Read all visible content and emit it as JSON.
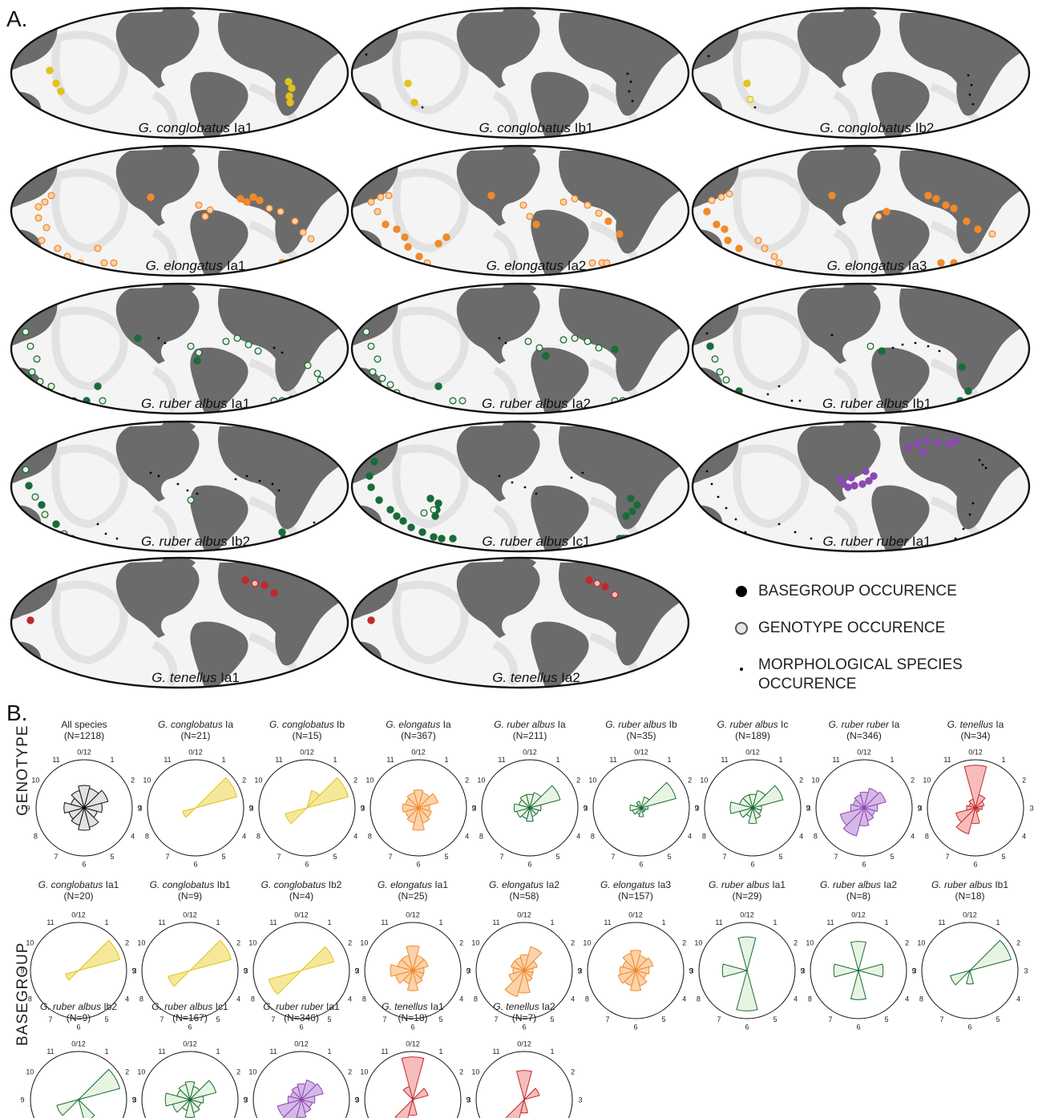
{
  "panels": {
    "a_label": "A.",
    "b_label": "B."
  },
  "side_labels": {
    "genotype": "GENOTYPE",
    "basegroup": "BASEGROUP"
  },
  "colors": {
    "yellow": "#e2c21c",
    "orange": "#ef8a2a",
    "green": "#1a6b3a",
    "purple": "#8a4ab0",
    "red": "#c0282c",
    "black": "#111111"
  },
  "legend": {
    "basegroup": "BASEGROUP OCCURENCE",
    "genotype": "GENOTYPE OCCURENCE",
    "morph_line1": "MORPHOLOGICAL SPECIES",
    "morph_line2": "OCCURENCE"
  },
  "maps": [
    {
      "genus": "G. ",
      "species": "conglobatus",
      "variant": " Ia1",
      "color": "yellow"
    },
    {
      "genus": "G. ",
      "species": "conglobatus",
      "variant": " Ib1",
      "color": "yellow"
    },
    {
      "genus": "G. ",
      "species": "conglobatus",
      "variant": " Ib2",
      "color": "yellow"
    },
    {
      "genus": "G. ",
      "species": "elongatus",
      "variant": " Ia1",
      "color": "orange"
    },
    {
      "genus": "G. ",
      "species": "elongatus",
      "variant": " Ia2",
      "color": "orange"
    },
    {
      "genus": "G. ",
      "species": "elongatus",
      "variant": " Ia3",
      "color": "orange"
    },
    {
      "genus": "G. ",
      "species": "ruber albus",
      "variant": " Ia1",
      "color": "green"
    },
    {
      "genus": "G. ",
      "species": "ruber albus",
      "variant": " Ia2",
      "color": "green"
    },
    {
      "genus": "G. ",
      "species": "ruber albus",
      "variant": " Ib1",
      "color": "green"
    },
    {
      "genus": "G. ",
      "species": "ruber albus",
      "variant": " Ib2",
      "color": "green"
    },
    {
      "genus": "G. ",
      "species": "ruber albus",
      "variant": " Ic1",
      "color": "green"
    },
    {
      "genus": "G. ",
      "species": "ruber ruber",
      "variant": " Ia1",
      "color": "purple"
    },
    {
      "genus": "G. ",
      "species": "tenellus",
      "variant": " Ia1",
      "color": "red"
    },
    {
      "genus": "G. ",
      "species": "tenellus",
      "variant": " Ia2",
      "color": "red"
    }
  ],
  "clock_labels": [
    "0/12",
    "1",
    "2",
    "3",
    "4",
    "5",
    "6",
    "7",
    "8",
    "9",
    "10",
    "11"
  ],
  "chart_data": [
    {
      "type": "rose",
      "section": "genotype",
      "title_plain": "All species",
      "title_italic": "",
      "title_rest": "",
      "n": "(N=1218)",
      "color": "black",
      "values": [
        0.5,
        0.45,
        0.55,
        0.4,
        0.3,
        0.45,
        0.5,
        0.4,
        0.35,
        0.45,
        0.3,
        0.4
      ]
    },
    {
      "type": "rose",
      "section": "genotype",
      "title_plain": "",
      "title_italic": "G. conglobatus",
      "title_rest": " Ia",
      "n": "(N=21)",
      "color": "yellow",
      "values": [
        0,
        0,
        0.95,
        0,
        0,
        0,
        0,
        0,
        0.3,
        0,
        0,
        0
      ]
    },
    {
      "type": "rose",
      "section": "genotype",
      "title_plain": "",
      "title_italic": "G. conglobatus",
      "title_rest": " Ib",
      "n": "(N=15)",
      "color": "yellow",
      "values": [
        0,
        0.4,
        0.95,
        0,
        0,
        0,
        0,
        0,
        0.5,
        0,
        0,
        0
      ]
    },
    {
      "type": "rose",
      "section": "genotype",
      "title_plain": "",
      "title_italic": "G. elongatus",
      "title_rest": " Ia",
      "n": "(N=367)",
      "color": "orange",
      "values": [
        0.4,
        0.35,
        0.45,
        0.25,
        0.3,
        0.35,
        0.5,
        0.35,
        0.3,
        0.35,
        0.3,
        0.35
      ]
    },
    {
      "type": "rose",
      "section": "genotype",
      "title_plain": "",
      "title_italic": "G. ruber albus",
      "title_rest": " Ia",
      "n": "(N=211)",
      "color": "green",
      "values": [
        0.3,
        0.35,
        0.7,
        0.25,
        0.2,
        0.2,
        0.3,
        0.25,
        0.3,
        0.35,
        0.25,
        0.3
      ]
    },
    {
      "type": "rose",
      "section": "genotype",
      "title_plain": "",
      "title_italic": "G. ruber albus",
      "title_rest": " Ib",
      "n": "(N=35)",
      "color": "green",
      "values": [
        0,
        0.25,
        0.8,
        0.15,
        0.1,
        0.1,
        0.2,
        0.15,
        0.2,
        0.25,
        0.1,
        0.15
      ]
    },
    {
      "type": "rose",
      "section": "genotype",
      "title_plain": "",
      "title_italic": "G. ruber albus",
      "title_rest": " Ic",
      "n": "(N=189)",
      "color": "green",
      "values": [
        0.3,
        0.4,
        0.7,
        0.2,
        0.2,
        0.25,
        0.35,
        0.2,
        0.3,
        0.5,
        0.3,
        0.3
      ]
    },
    {
      "type": "rose",
      "section": "genotype",
      "title_plain": "",
      "title_italic": "G. ruber ruber",
      "title_rest": " Ia",
      "n": "(N=346)",
      "color": "purple",
      "values": [
        0.35,
        0.45,
        0.5,
        0.3,
        0.25,
        0.3,
        0.4,
        0.65,
        0.55,
        0.3,
        0.25,
        0.3
      ]
    },
    {
      "type": "rose",
      "section": "genotype",
      "title_plain": "",
      "title_italic": "G. tenellus",
      "title_rest": " Ia",
      "n": "(N=34)",
      "color": "red",
      "values": [
        0.95,
        0.3,
        0.2,
        0.15,
        0.1,
        0.1,
        0.35,
        0.6,
        0.45,
        0.2,
        0.15,
        0.2
      ]
    },
    {
      "type": "rose",
      "section": "basegroup",
      "title_plain": "",
      "title_italic": "G. conglobatus",
      "title_rest": " Ia1",
      "n": "(N=20)",
      "color": "yellow",
      "values": [
        0,
        0,
        0.95,
        0,
        0,
        0,
        0,
        0,
        0.3,
        0,
        0,
        0
      ]
    },
    {
      "type": "rose",
      "section": "basegroup",
      "title_plain": "",
      "title_italic": "G. conglobatus",
      "title_rest": " Ib1",
      "n": "(N=9)",
      "color": "yellow",
      "values": [
        0,
        0,
        0.95,
        0,
        0,
        0,
        0,
        0,
        0.5,
        0,
        0,
        0
      ]
    },
    {
      "type": "rose",
      "section": "basegroup",
      "title_plain": "",
      "title_italic": "G. conglobatus",
      "title_rest": " Ib2",
      "n": "(N=4)",
      "color": "yellow",
      "values": [
        0,
        0,
        0.75,
        0,
        0,
        0,
        0,
        0,
        0.75,
        0,
        0,
        0
      ]
    },
    {
      "type": "rose",
      "section": "basegroup",
      "title_plain": "",
      "title_italic": "G. elongatus",
      "title_rest": " Ia1",
      "n": "(N=25)",
      "color": "orange",
      "values": [
        0.55,
        0.35,
        0.35,
        0.25,
        0.25,
        0.3,
        0.45,
        0.3,
        0.4,
        0.5,
        0.35,
        0.35
      ]
    },
    {
      "type": "rose",
      "section": "basegroup",
      "title_plain": "",
      "title_italic": "G. elongatus",
      "title_rest": " Ia2",
      "n": "(N=58)",
      "color": "orange",
      "values": [
        0.35,
        0.55,
        0.3,
        0.2,
        0.2,
        0.25,
        0.5,
        0.6,
        0.35,
        0.25,
        0.3,
        0.3
      ]
    },
    {
      "type": "rose",
      "section": "basegroup",
      "title_plain": "",
      "title_italic": "G. elongatus",
      "title_rest": " Ia3",
      "n": "(N=157)",
      "color": "orange",
      "values": [
        0.45,
        0.35,
        0.4,
        0.3,
        0.25,
        0.35,
        0.45,
        0.35,
        0.4,
        0.35,
        0.3,
        0.4
      ]
    },
    {
      "type": "rose",
      "section": "basegroup",
      "title_plain": "",
      "title_italic": "G. ruber albus",
      "title_rest": " Ia1",
      "n": "(N=29)",
      "color": "green",
      "values": [
        0.75,
        0,
        0,
        0,
        0,
        0,
        0.9,
        0,
        0,
        0.55,
        0,
        0
      ]
    },
    {
      "type": "rose",
      "section": "basegroup",
      "title_plain": "",
      "title_italic": "G. ruber albus",
      "title_rest": " Ia2",
      "n": "(N=8)",
      "color": "green",
      "values": [
        0.65,
        0,
        0,
        0.55,
        0,
        0,
        0.65,
        0,
        0,
        0.55,
        0,
        0
      ]
    },
    {
      "type": "rose",
      "section": "basegroup",
      "title_plain": "",
      "title_italic": "G. ruber albus",
      "title_rest": " Ib1",
      "n": "(N=18)",
      "color": "green",
      "values": [
        0,
        0,
        0.95,
        0,
        0,
        0,
        0.3,
        0,
        0.45,
        0,
        0,
        0
      ]
    },
    {
      "type": "rose",
      "section": "basegroup",
      "title_plain": "",
      "title_italic": "G. ruber albus",
      "title_rest": " Ib2",
      "n": "(N=9)",
      "color": "green",
      "values": [
        0,
        0,
        0.95,
        0,
        0,
        0.5,
        0,
        0,
        0.5,
        0,
        0,
        0
      ]
    },
    {
      "type": "rose",
      "section": "basegroup",
      "title_plain": "",
      "title_italic": "G. ruber albus",
      "title_rest": " Ic1",
      "n": "(N=167)",
      "color": "green",
      "values": [
        0.4,
        0.3,
        0.6,
        0.3,
        0.25,
        0.3,
        0.4,
        0.25,
        0.4,
        0.55,
        0.3,
        0.35
      ]
    },
    {
      "type": "rose",
      "section": "basegroup",
      "title_plain": "",
      "title_italic": "G. ruber ruber",
      "title_rest": " Ia1",
      "n": "(N=346)",
      "color": "purple",
      "values": [
        0.35,
        0.45,
        0.5,
        0.3,
        0.25,
        0.3,
        0.4,
        0.65,
        0.55,
        0.3,
        0.25,
        0.3
      ]
    },
    {
      "type": "rose",
      "section": "basegroup",
      "title_plain": "",
      "title_italic": "G. tenellus",
      "title_rest": " Ia1",
      "n": "(N=18)",
      "color": "red",
      "values": [
        0.95,
        0,
        0.35,
        0,
        0,
        0,
        0.35,
        0.55,
        0,
        0,
        0,
        0.3
      ]
    },
    {
      "type": "rose",
      "section": "basegroup",
      "title_plain": "",
      "title_italic": "G. tenellus",
      "title_rest": " Ia2",
      "n": "(N=7)",
      "color": "red",
      "values": [
        0.65,
        0,
        0.35,
        0,
        0,
        0,
        0.3,
        0.75,
        0,
        0,
        0,
        0
      ]
    }
  ]
}
